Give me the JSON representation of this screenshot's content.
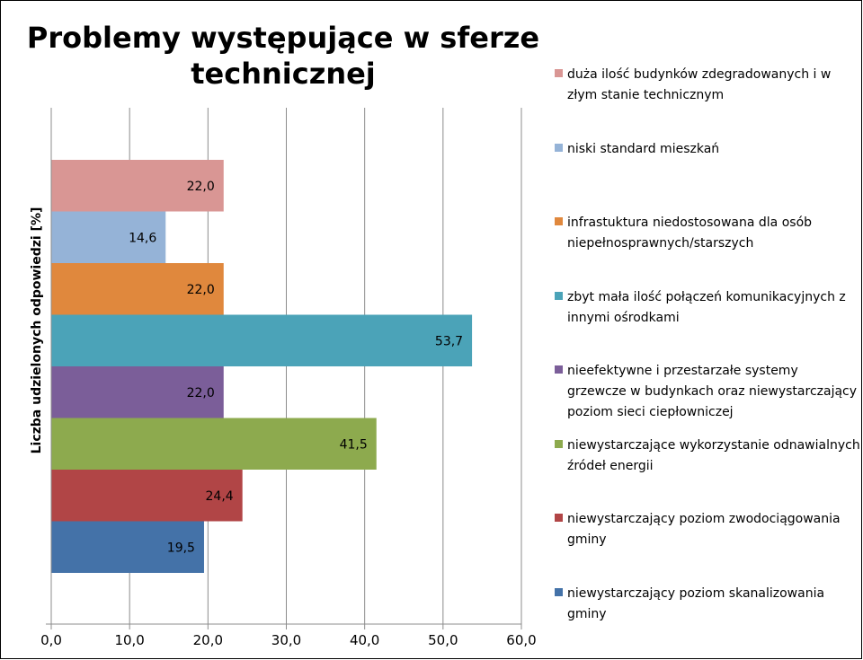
{
  "chart_data": {
    "type": "bar",
    "orientation": "horizontal",
    "title_lines": [
      "Problemy występujące w sferze",
      "technicznej"
    ],
    "xlabel": "",
    "ylabel": "Liczba udzielonych odpowiedzi [%]",
    "xlim": [
      0,
      60
    ],
    "x_ticks": [
      "0,0",
      "10,0",
      "20,0",
      "30,0",
      "40,0",
      "50,0",
      "60,0"
    ],
    "grid": "vertical",
    "legend_position": "right",
    "series": [
      {
        "name": "duża ilość budynków zdegradowanych i w złym stanie technicznym",
        "value": 22.0,
        "label": "22,0",
        "color": "#D99694"
      },
      {
        "name": "niski standard mieszkań",
        "value": 14.6,
        "label": "14,6",
        "color": "#95B3D7"
      },
      {
        "name": "infrastuktura niedostosowana dla osób niepełnosprawnych/starszych",
        "value": 22.0,
        "label": "22,0",
        "color": "#E0883D"
      },
      {
        "name": "zbyt mała ilość połączeń komunikacyjnych z innymi ośrodkami",
        "value": 53.7,
        "label": "53,7",
        "color": "#4BA3B8"
      },
      {
        "name": "nieefektywne i przestarzałe systemy grzewcze w budynkach oraz niewystarczający poziom sieci ciepłowniczej",
        "value": 22.0,
        "label": "22,0",
        "color": "#7B5E99"
      },
      {
        "name": "niewystarczające wykorzystanie odnawialnych źródeł energii",
        "value": 41.5,
        "label": "41,5",
        "color": "#8DAA4E"
      },
      {
        "name": "niewystarczający poziom zwodociągowania gminy",
        "value": 24.4,
        "label": "24,4",
        "color": "#B14546"
      },
      {
        "name": "niewystarczający poziom skanalizowania gminy",
        "value": 19.5,
        "label": "19,5",
        "color": "#4472A8"
      }
    ]
  }
}
